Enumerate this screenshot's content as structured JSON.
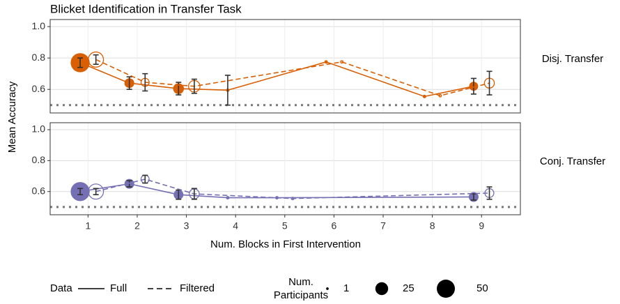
{
  "chart_data": {
    "type": "line",
    "title": "Blicket Identification in Transfer Task",
    "ylabel": "Mean Accuracy",
    "xlabel": "Num. Blocks in First Intervention",
    "xlim": [
      0.23,
      9.79
    ],
    "xticks": [
      1,
      2,
      3,
      4,
      5,
      6,
      7,
      8,
      9
    ],
    "ylim": [
      0.45,
      1.045
    ],
    "yticks": [
      0.6,
      0.8,
      {
        "value": 1,
        "label": "1.0"
      }
    ],
    "grid": true,
    "reference_line": 0.5,
    "legend_title": "Data",
    "size_title": [
      "Num.",
      "Participants"
    ],
    "size_legend": [
      1,
      25,
      50
    ],
    "panels": [
      {
        "label": "Disj. Transfer",
        "color": "#d95f02",
        "series": [
          {
            "name": "Full",
            "dash": false,
            "hollow": false,
            "x": [
              1,
              2,
              3,
              4,
              6,
              8,
              9
            ],
            "values": [
              0.77,
              0.64,
              0.605,
              0.595,
              0.775,
              0.555,
              0.62
            ],
            "errors": [
              0.03,
              0.04,
              0.04,
              0.095,
              null,
              null,
              0.05
            ],
            "sizes": [
              50,
              12,
              15,
              1,
              1,
              1,
              10
            ]
          },
          {
            "name": "Filtered",
            "dash": true,
            "hollow": true,
            "x": [
              1,
              2,
              3,
              6,
              8,
              9
            ],
            "values": [
              0.79,
              0.645,
              0.62,
              0.775,
              0.56,
              0.64
            ],
            "errors": [
              0.03,
              0.055,
              0.045,
              null,
              null,
              0.075
            ],
            "sizes": [
              35,
              10,
              20,
              1,
              1,
              15
            ]
          }
        ]
      },
      {
        "label": "Conj. Transfer",
        "color": "#7570b3",
        "series": [
          {
            "name": "Full",
            "dash": false,
            "hollow": false,
            "x": [
              1,
              2,
              3,
              4,
              5,
              9
            ],
            "values": [
              0.6,
              0.65,
              0.58,
              0.56,
              0.56,
              0.565
            ],
            "errors": [
              0.02,
              0.02,
              0.03,
              null,
              null,
              0.02
            ],
            "sizes": [
              50,
              12,
              12,
              1,
              1,
              12
            ]
          },
          {
            "name": "Filtered",
            "dash": true,
            "hollow": true,
            "x": [
              1,
              2,
              3,
              5,
              9
            ],
            "values": [
              0.6,
              0.68,
              0.585,
              0.555,
              0.59
            ],
            "errors": [
              0.02,
              0.025,
              0.035,
              null,
              0.04
            ],
            "sizes": [
              35,
              10,
              15,
              1,
              12
            ]
          }
        ]
      }
    ]
  }
}
